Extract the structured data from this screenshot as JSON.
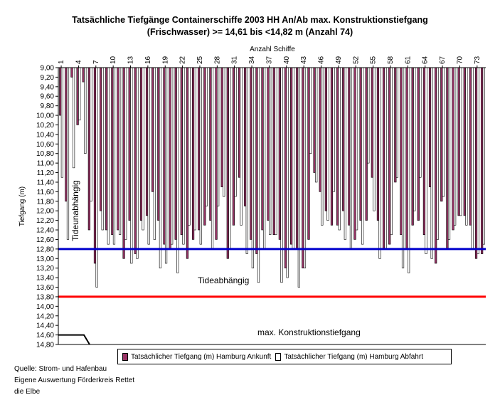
{
  "chart_data": {
    "type": "bar",
    "title_line1": "Tatsächliche Tiefgänge Containerschiffe 2003 HH An/Ab max. Konstruktionstiefgang",
    "title_line2": "(Frischwasser) >= 14,61 bis <14,82 m (Anzahl 74)",
    "x_axis_label": "Anzahl Schiffe",
    "y_axis_label": "Tiefgang (m)",
    "ylim": [
      9.0,
      14.8
    ],
    "y_inverted": true,
    "y_ticks": [
      "9,00",
      "9,20",
      "9,40",
      "9,60",
      "9,80",
      "10,00",
      "10,20",
      "10,40",
      "10,60",
      "10,80",
      "11,00",
      "11,20",
      "11,40",
      "11,60",
      "11,80",
      "12,00",
      "12,20",
      "12,40",
      "12,60",
      "12,80",
      "13,00",
      "13,20",
      "13,40",
      "13,60",
      "13,80",
      "14,00",
      "14,20",
      "14,40",
      "14,60",
      "14,80"
    ],
    "x_ticks": [
      "1",
      "4",
      "7",
      "10",
      "13",
      "16",
      "19",
      "22",
      "25",
      "28",
      "31",
      "34",
      "37",
      "40",
      "43",
      "46",
      "49",
      "52",
      "55",
      "58",
      "61",
      "64",
      "67",
      "70",
      "73"
    ],
    "ship_count": 74,
    "series": [
      {
        "name": "Tatsächlicher Tiefgang (m) Hamburg Ankunft",
        "color": "#993366",
        "values": [
          10.0,
          11.8,
          9.2,
          10.2,
          9.3,
          12.4,
          13.1,
          12.0,
          12.4,
          12.5,
          12.4,
          13.0,
          12.2,
          12.9,
          12.2,
          12.1,
          11.6,
          12.2,
          12.7,
          12.8,
          12.6,
          12.5,
          13.0,
          12.6,
          12.4,
          12.3,
          12.2,
          12.6,
          11.5,
          13.0,
          12.3,
          11.3,
          11.9,
          12.6,
          12.9,
          12.4,
          12.2,
          12.5,
          12.6,
          13.2,
          12.7,
          12.8,
          13.2,
          12.6,
          11.2,
          11.6,
          12.0,
          12.3,
          12.3,
          12.0,
          12.3,
          12.6,
          12.2,
          12.2,
          11.3,
          12.2,
          12.8,
          12.7,
          11.4,
          12.5,
          12.8,
          12.3,
          12.2,
          12.5,
          11.5,
          13.1,
          11.8,
          12.8,
          12.4,
          12.1,
          12.1,
          12.3,
          13.0,
          12.9
        ]
      },
      {
        "name": "Tatsächlicher Tiefgang (m) Hamburg Abfahrt",
        "color": "#ffffff",
        "values": [
          11.3,
          12.6,
          11.1,
          10.1,
          10.8,
          11.8,
          13.6,
          12.4,
          12.7,
          12.7,
          12.5,
          12.6,
          13.1,
          13.0,
          12.4,
          12.7,
          12.6,
          13.2,
          13.1,
          12.7,
          13.3,
          12.7,
          12.3,
          12.4,
          12.7,
          11.9,
          12.8,
          11.9,
          11.7,
          12.8,
          11.7,
          12.3,
          12.9,
          13.2,
          13.5,
          12.8,
          12.5,
          12.5,
          13.5,
          13.4,
          12.8,
          13.6,
          13.2,
          10.8,
          11.4,
          12.3,
          12.2,
          11.6,
          12.4,
          12.6,
          12.8,
          12.4,
          12.7,
          11.0,
          12.0,
          13.0,
          12.8,
          12.5,
          11.3,
          13.2,
          13.3,
          12.0,
          11.3,
          12.9,
          13.0,
          12.6,
          11.7,
          12.6,
          12.3,
          12.1,
          12.3,
          12.8,
          12.9,
          12.7
        ]
      }
    ],
    "reference_lines": [
      {
        "label": "Tideunabhängig",
        "value": 12.8,
        "color": "#0000cc"
      },
      {
        "label": "Tideabhängig",
        "value": 13.8,
        "color": "#ff0000"
      },
      {
        "label": "max. Konstruktionstiefgang",
        "value": 14.6,
        "color": "#000000"
      }
    ],
    "legend_position": "bottom"
  },
  "source_lines": [
    "Quelle: Strom- und Hafenbau",
    "Eigene Auswertung Förderkreis Rettet",
    "die Elbe"
  ]
}
